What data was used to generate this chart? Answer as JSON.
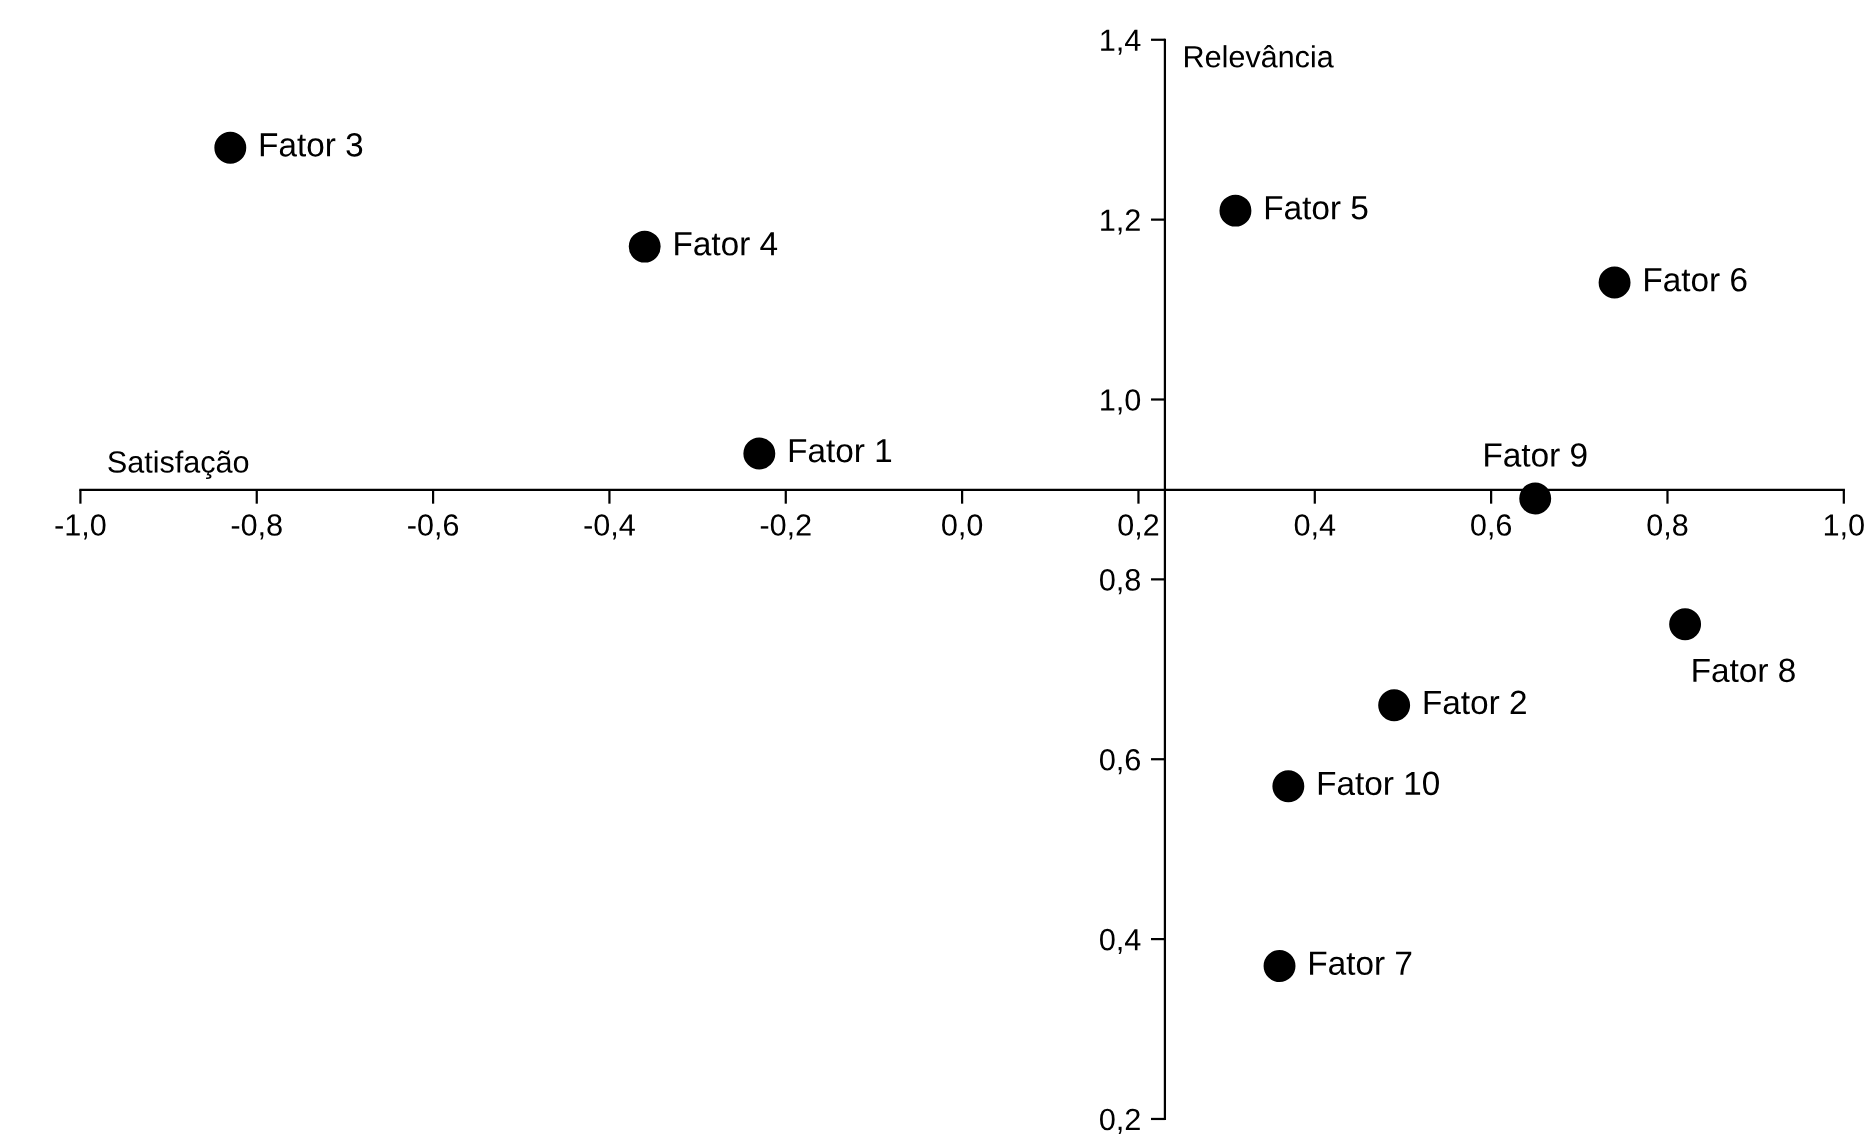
{
  "chart_data": {
    "type": "scatter",
    "xlabel": "Satisfação",
    "ylabel": "Relevância",
    "marker": "circle",
    "grid": false,
    "legend": false,
    "series": [
      {
        "color": "#000000",
        "x": [
          -0.23,
          0.49,
          -0.83,
          -0.36,
          0.31,
          0.74,
          0.36,
          0.82,
          0.65,
          0.37
        ],
        "values": [
          0.94,
          0.66,
          1.28,
          1.17,
          1.21,
          1.13,
          0.37,
          0.75,
          0.89,
          0.57
        ]
      }
    ],
    "annotations": [
      {
        "text": "Fator 1",
        "x": -0.23,
        "y": 0.94
      },
      {
        "text": "Fator 2",
        "x": 0.49,
        "y": 0.66
      },
      {
        "text": "Fator 3",
        "x": -0.83,
        "y": 1.28
      },
      {
        "text": "Fator 4",
        "x": -0.36,
        "y": 1.17
      },
      {
        "text": "Fator 5",
        "x": 0.31,
        "y": 1.21
      },
      {
        "text": "Fator 6",
        "x": 0.74,
        "y": 1.13
      },
      {
        "text": "Fator 7",
        "x": 0.36,
        "y": 0.37
      },
      {
        "text": "Fator 8",
        "x": 0.82,
        "y": 0.75
      },
      {
        "text": "Fator 9",
        "x": 0.65,
        "y": 0.89
      },
      {
        "text": "Fator 10",
        "x": 0.37,
        "y": 0.57
      }
    ],
    "xlim": [
      -1.0,
      1.0
    ],
    "ylim": [
      0.2,
      1.4
    ],
    "xticks": [
      {
        "value": -1.0,
        "label": "-1,0"
      },
      {
        "value": -0.8,
        "label": "-0,8"
      },
      {
        "value": -0.6,
        "label": "-0,6"
      },
      {
        "value": -0.4,
        "label": "-0,4"
      },
      {
        "value": -0.2,
        "label": "-0,2"
      },
      {
        "value": 0.0,
        "label": "0,0"
      },
      {
        "value": 0.2,
        "label": "0,2"
      },
      {
        "value": 0.4,
        "label": "0,4"
      },
      {
        "value": 0.6,
        "label": "0,6"
      },
      {
        "value": 0.8,
        "label": "0,8"
      },
      {
        "value": 1.0,
        "label": "1,0"
      }
    ],
    "yticks": [
      {
        "value": 0.2,
        "label": "0,2"
      },
      {
        "value": 0.4,
        "label": "0,4"
      },
      {
        "value": 0.6,
        "label": "0,6"
      },
      {
        "value": 0.8,
        "label": "0,8"
      },
      {
        "value": 1.0,
        "label": "1,0"
      },
      {
        "value": 1.2,
        "label": "1,2"
      },
      {
        "value": 1.4,
        "label": "1,4"
      }
    ]
  }
}
